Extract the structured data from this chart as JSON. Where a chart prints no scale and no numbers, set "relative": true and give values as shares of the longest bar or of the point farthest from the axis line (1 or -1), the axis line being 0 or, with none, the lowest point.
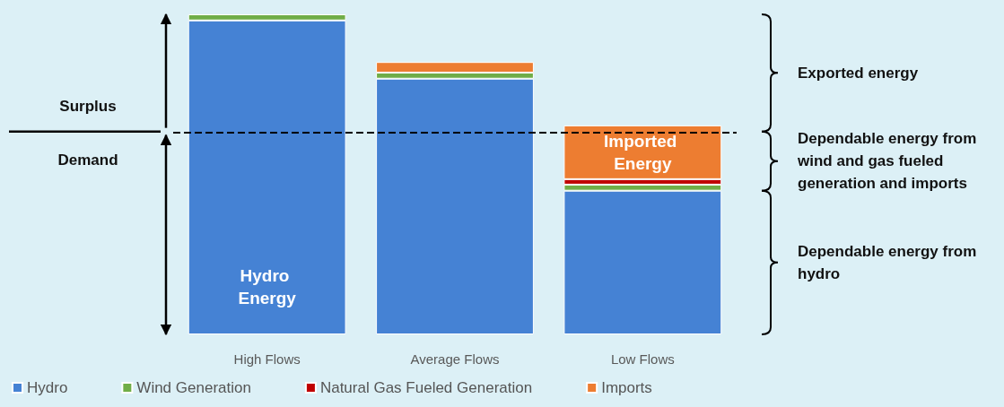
{
  "chart_data": {
    "type": "bar",
    "stacked": true,
    "relative": true,
    "categories": [
      "High Flows",
      "Average Flows",
      "Low Flows"
    ],
    "series": [
      {
        "name": "Hydro",
        "color": "#4582d4",
        "values": [
          0.981,
          0.799,
          0.449
        ]
      },
      {
        "name": "Wind Generation",
        "color": "#70ad47",
        "values": [
          0.019,
          0.019,
          0.019
        ]
      },
      {
        "name": "Natural Gas Fueled Generation",
        "color": "#c00000",
        "values": [
          null,
          null,
          0.017
        ]
      },
      {
        "name": "Imports",
        "color": "#ed7d31",
        "values": [
          null,
          0.033,
          0.168
        ]
      }
    ],
    "ref_lines": [
      {
        "axis": "y",
        "value": 0.634,
        "color": "#000000",
        "line_style": "dashed"
      }
    ],
    "annotations": [
      "Surplus",
      "Demand",
      "Exported energy",
      "Dependable energy from wind and gas fueled generation and imports",
      "Dependable energy from hydro",
      "Hydro Energy",
      "Imported Energy"
    ],
    "legend": "bottom left"
  }
}
